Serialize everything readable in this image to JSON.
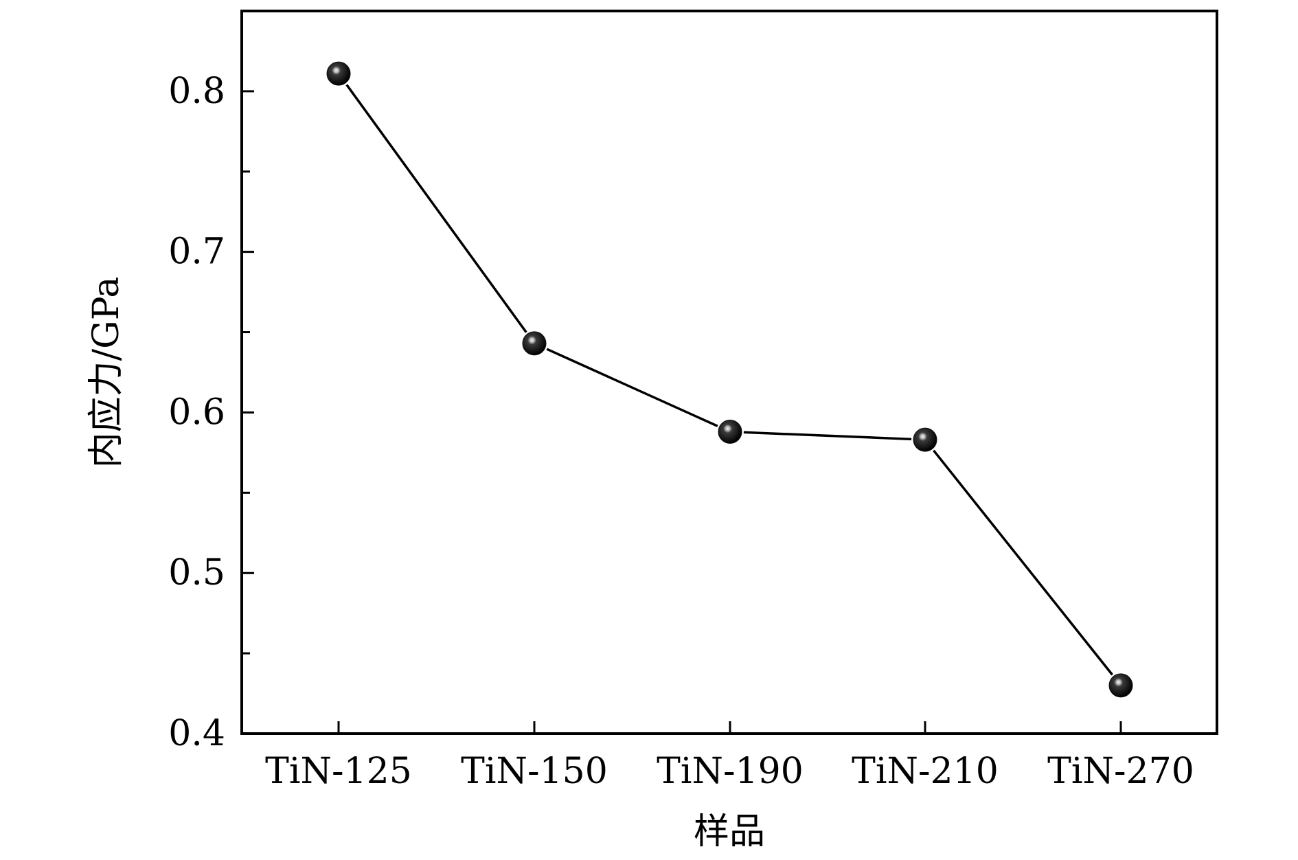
{
  "chart_data": {
    "type": "line",
    "xlabel": "样品",
    "ylabel": "内应力/GPa",
    "categories": [
      "TiN-125",
      "TiN-150",
      "TiN-190",
      "TiN-210",
      "TiN-270"
    ],
    "series": [
      {
        "values": [
          0.811,
          0.643,
          0.588,
          0.583,
          0.43
        ]
      }
    ],
    "ylim": [
      0.4,
      0.85
    ],
    "yticks": [
      0.4,
      0.5,
      0.6,
      0.7,
      0.8
    ],
    "ytick_labels": [
      "0.4",
      "0.5",
      "0.6",
      "0.7",
      "0.8"
    ],
    "yminor_ticks": [
      0.45,
      0.55,
      0.65,
      0.75
    ],
    "grid": false,
    "legend": "none",
    "colors": {
      "line": "#000000",
      "marker": "#111111",
      "marker_highlight": "#e8e8e8",
      "axis": "#000000"
    }
  }
}
